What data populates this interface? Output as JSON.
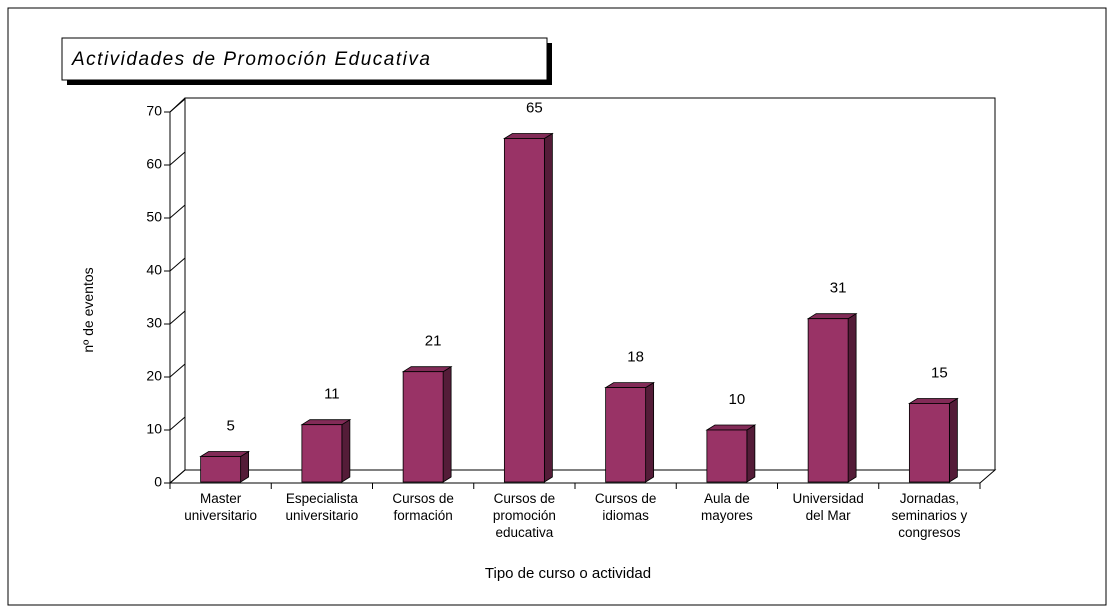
{
  "chart_data": {
    "type": "bar3d",
    "title": "Actividades de Promoción Educativa",
    "x_label": "Tipo de curso o actividad",
    "y_label": "nº de eventos",
    "categories": [
      [
        "Master",
        "universitario"
      ],
      [
        "Especialista",
        "universitario"
      ],
      [
        "Cursos de",
        "formación"
      ],
      [
        "Cursos de",
        "promoción",
        "educativa"
      ],
      [
        "Cursos de",
        "idiomas"
      ],
      [
        "Aula de",
        "mayores"
      ],
      [
        "Universidad",
        "del Mar"
      ],
      [
        "Jornadas,",
        "seminarios y",
        "congresos"
      ]
    ],
    "values": [
      5,
      11,
      21,
      65,
      18,
      10,
      31,
      15
    ],
    "color": "#993366",
    "ylim": [
      0,
      70
    ],
    "yticks": [
      0,
      10,
      20,
      30,
      40,
      50,
      60,
      70
    ]
  }
}
